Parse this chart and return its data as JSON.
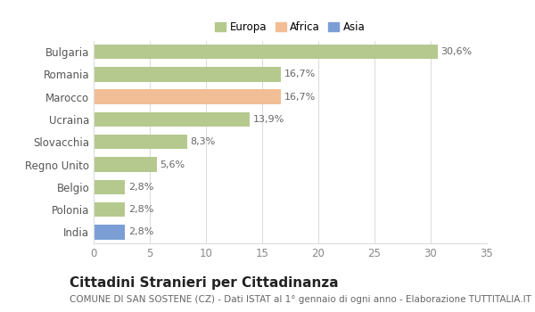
{
  "categories": [
    "Bulgaria",
    "Romania",
    "Marocco",
    "Ucraina",
    "Slovacchia",
    "Regno Unito",
    "Belgio",
    "Polonia",
    "India"
  ],
  "values": [
    30.6,
    16.7,
    16.7,
    13.9,
    8.3,
    5.6,
    2.8,
    2.8,
    2.8
  ],
  "labels": [
    "30,6%",
    "16,7%",
    "16,7%",
    "13,9%",
    "8,3%",
    "5,6%",
    "2,8%",
    "2,8%",
    "2,8%"
  ],
  "colors": [
    "#b5c98e",
    "#b5c98e",
    "#f2be96",
    "#b5c98e",
    "#b5c98e",
    "#b5c98e",
    "#b5c98e",
    "#b5c98e",
    "#7b9fd4"
  ],
  "legend_labels": [
    "Europa",
    "Africa",
    "Asia"
  ],
  "legend_colors": [
    "#b5c98e",
    "#f2be96",
    "#7b9fd4"
  ],
  "title": "Cittadini Stranieri per Cittadinanza",
  "subtitle": "COMUNE DI SAN SOSTENE (CZ) - Dati ISTAT al 1° gennaio di ogni anno - Elaborazione TUTTITALIA.IT",
  "xlim": [
    0,
    35
  ],
  "xticks": [
    0,
    5,
    10,
    15,
    20,
    25,
    30,
    35
  ],
  "figure_bg": "#ffffff",
  "plot_bg": "#ffffff",
  "grid_color": "#dddddd",
  "bar_height": 0.65,
  "title_fontsize": 11,
  "subtitle_fontsize": 7.5,
  "tick_fontsize": 8.5,
  "label_fontsize": 8,
  "legend_fontsize": 8.5
}
